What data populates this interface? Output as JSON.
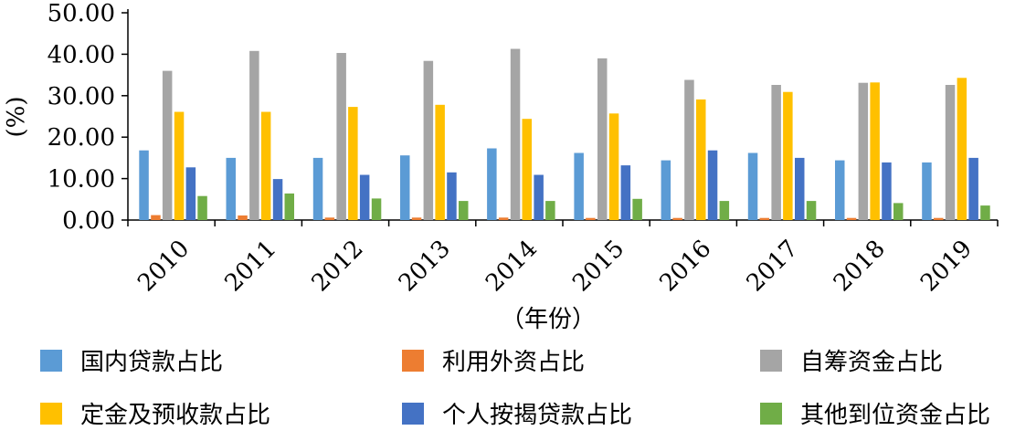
{
  "chart_data": {
    "type": "bar",
    "categories": [
      "2010",
      "2011",
      "2012",
      "2013",
      "2014",
      "2015",
      "2016",
      "2017",
      "2018",
      "2019"
    ],
    "series": [
      {
        "name": "国内贷款占比",
        "color": "#5B9BD5",
        "values": [
          16.8,
          15.0,
          15.0,
          15.6,
          17.3,
          16.2,
          14.4,
          16.2,
          14.4,
          13.9
        ]
      },
      {
        "name": "利用外资占比",
        "color": "#ED7D31",
        "values": [
          1.2,
          1.1,
          0.6,
          0.6,
          0.6,
          0.5,
          0.5,
          0.5,
          0.5,
          0.5
        ]
      },
      {
        "name": "自筹资金占比",
        "color": "#A5A5A5",
        "values": [
          36.0,
          40.8,
          40.3,
          38.4,
          41.3,
          39.0,
          33.8,
          32.6,
          33.1,
          32.6
        ]
      },
      {
        "name": "定金及预收款占比",
        "color": "#FFC000",
        "values": [
          26.1,
          26.1,
          27.3,
          27.8,
          24.4,
          25.7,
          29.1,
          30.9,
          33.2,
          34.3
        ]
      },
      {
        "name": "个人按揭贷款占比",
        "color": "#4472C4",
        "values": [
          12.7,
          9.9,
          10.9,
          11.5,
          10.9,
          13.2,
          16.8,
          15.0,
          13.9,
          15.0
        ]
      },
      {
        "name": "其他到位资金占比",
        "color": "#70AD47",
        "values": [
          5.8,
          6.4,
          5.2,
          4.6,
          4.6,
          5.1,
          4.6,
          4.6,
          4.1,
          3.5
        ]
      }
    ],
    "ylim": [
      0,
      50
    ],
    "yticks": [
      "0.00",
      "10.00",
      "20.00",
      "30.00",
      "40.00",
      "50.00"
    ],
    "ylabel": "(%)",
    "xlabel": "（年份）",
    "grid": false,
    "legend_position": "bottom"
  }
}
